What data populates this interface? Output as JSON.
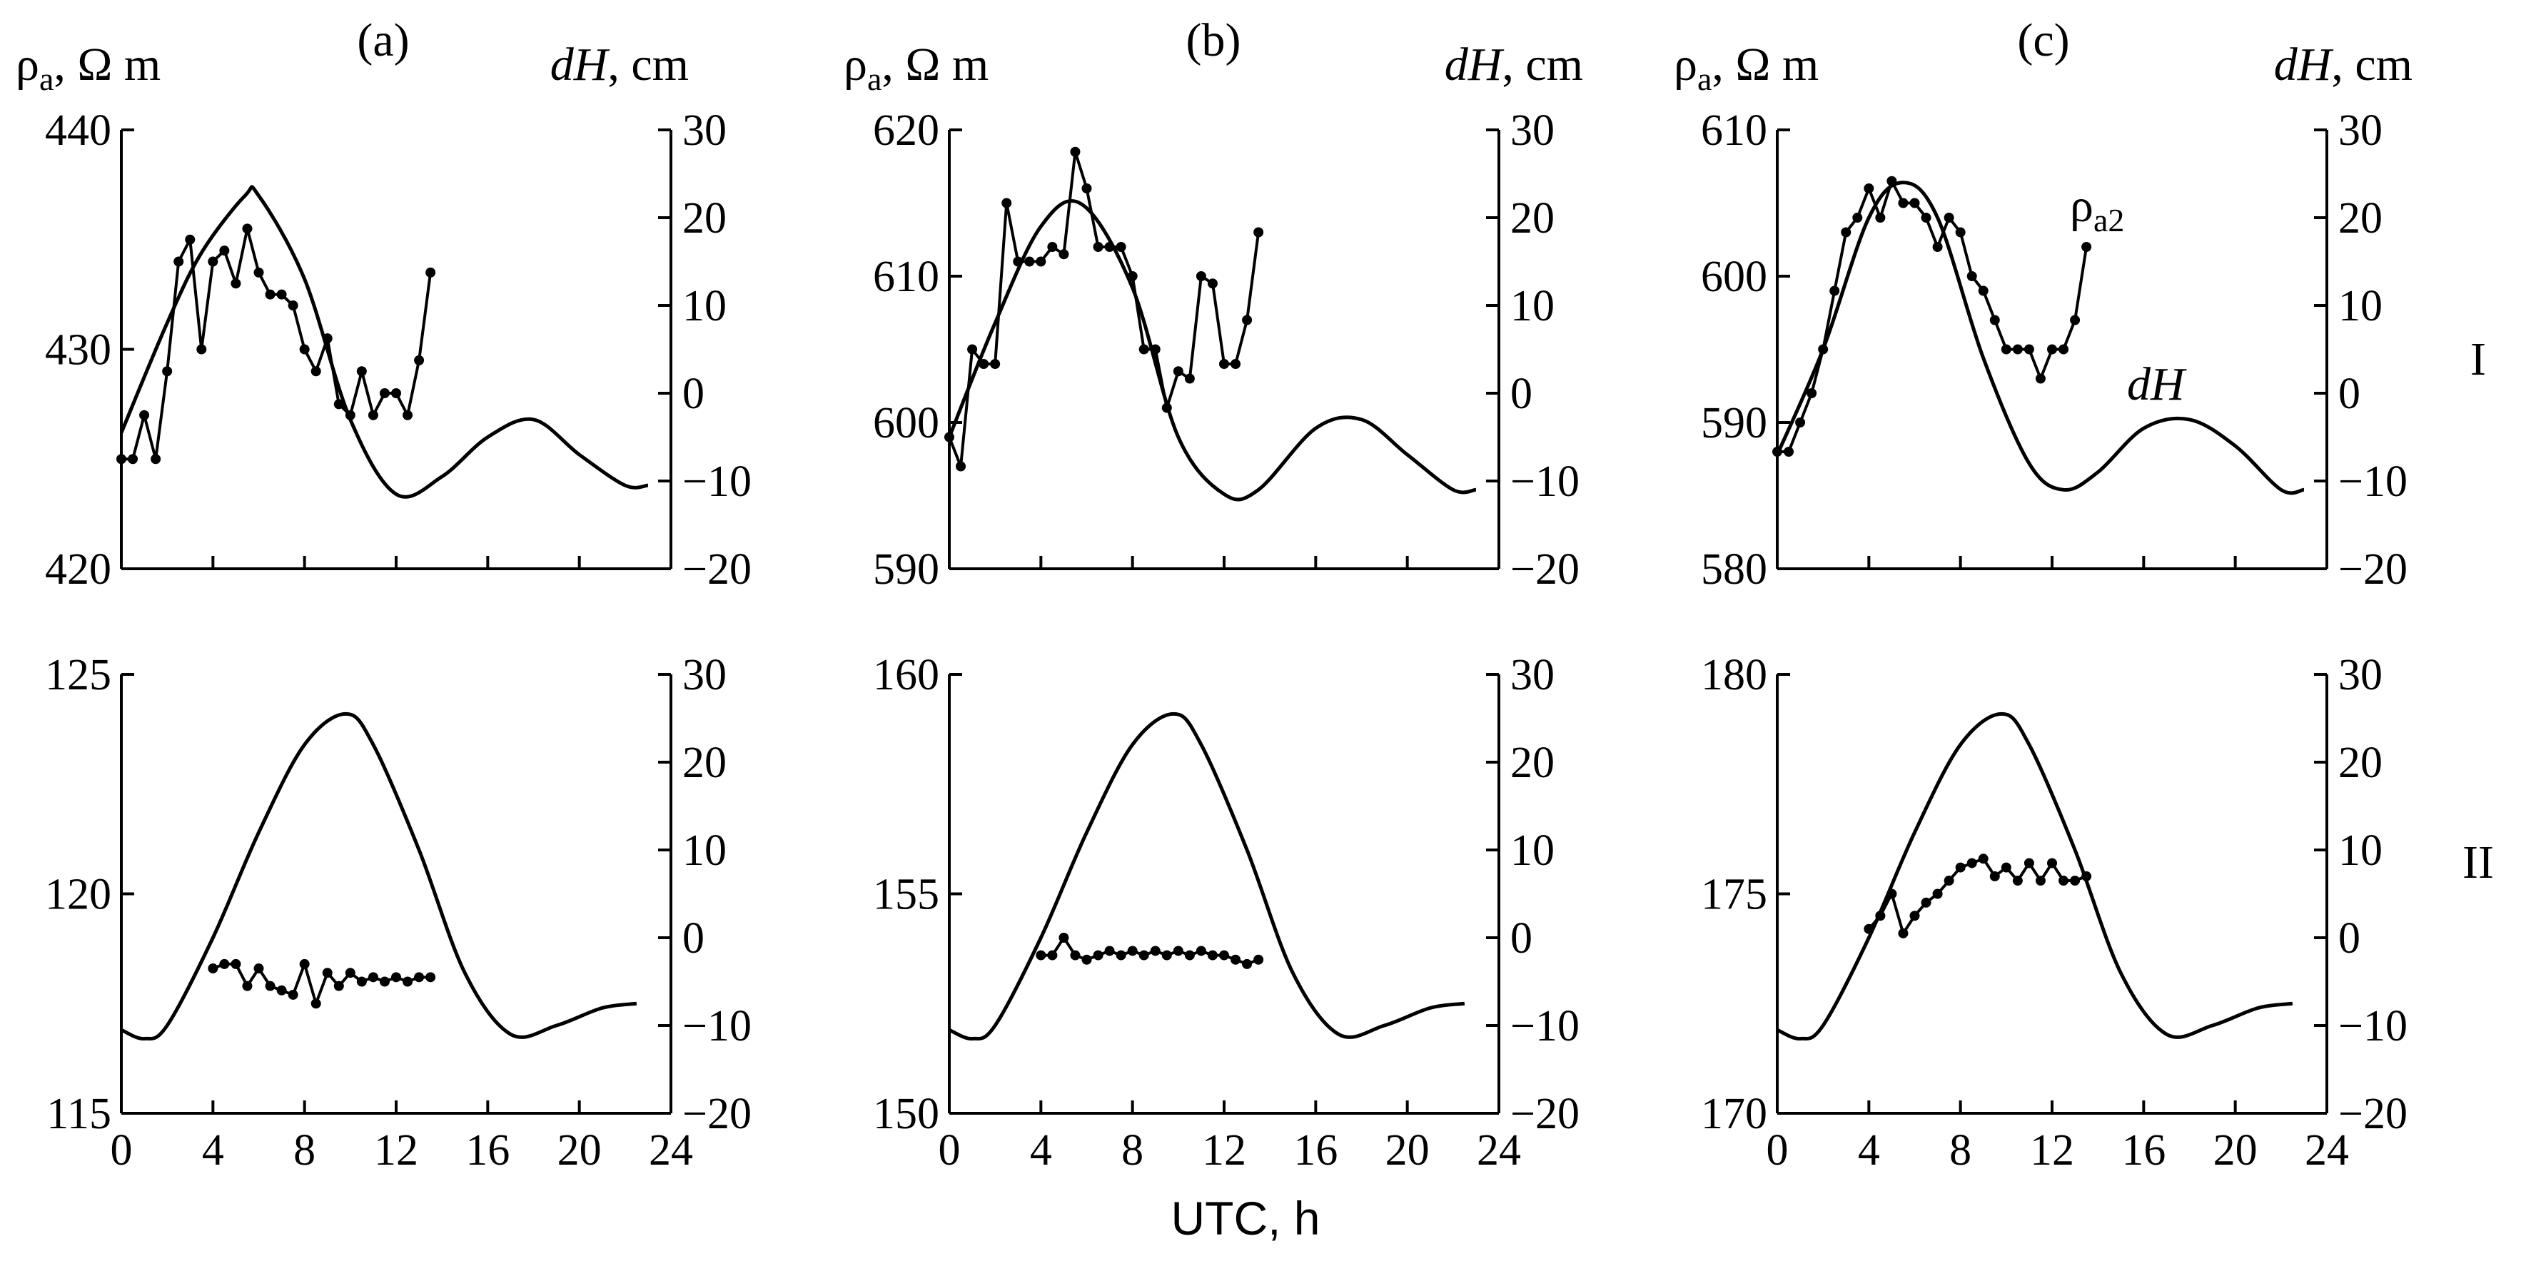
{
  "figure": {
    "panel_letters": [
      "(a)",
      "(b)",
      "(c)"
    ],
    "row_labels": [
      "I",
      "II"
    ],
    "x_axis_label": "UTC, h",
    "rho_symbol": "ρ",
    "rho_subscript": "a",
    "rho_unit": ", Ω m",
    "dh_symbol": "dH",
    "dh_unit": ", cm",
    "rho2_symbol": "ρ",
    "rho2_subscript": "a2",
    "dh_curve_label": "dH"
  },
  "chart_data": [
    {
      "type": "line",
      "panel": "(a)",
      "row": "I",
      "xlabel": "UTC, h",
      "ylabel": "ρa, Ω m",
      "y2label": "dH, cm",
      "xlim": [
        0,
        24
      ],
      "xticks": [
        0,
        4,
        8,
        12,
        16,
        20,
        24
      ],
      "ylim": [
        420,
        440
      ],
      "yticks": [
        420,
        430,
        440
      ],
      "y2lim": [
        -20,
        30
      ],
      "y2ticks": [
        -20,
        -10,
        0,
        10,
        20,
        30
      ],
      "series": [
        {
          "name": "dH",
          "axis": "right",
          "x": [
            0,
            2,
            3.5,
            5.4,
            6,
            8,
            10,
            12,
            14,
            16,
            18,
            20,
            22,
            23
          ],
          "y": [
            -4.5,
            8,
            16,
            22.5,
            22.5,
            13,
            -3,
            -11.5,
            -9.5,
            -5,
            -3,
            -7,
            -10.5,
            -10.5
          ]
        },
        {
          "name": "ρa",
          "axis": "left",
          "x": [
            0,
            0.5,
            1,
            1.5,
            2,
            2.5,
            3,
            3.5,
            4,
            4.5,
            5,
            5.5,
            6,
            6.5,
            7,
            7.5,
            8,
            8.5,
            9,
            9.5,
            10,
            10.5,
            11,
            11.5,
            12,
            12.5,
            13,
            13.5
          ],
          "y": [
            425,
            425,
            427,
            425,
            429,
            434,
            435,
            430,
            434,
            434.5,
            433,
            435.5,
            433.5,
            432.5,
            432.5,
            432,
            430,
            429,
            430.5,
            427.5,
            427,
            429,
            427,
            428,
            428,
            427,
            429.5,
            433.5
          ]
        }
      ]
    },
    {
      "type": "line",
      "panel": "(b)",
      "row": "I",
      "xlabel": "UTC, h",
      "ylabel": "ρa, Ω m",
      "y2label": "dH, cm",
      "xlim": [
        0,
        24
      ],
      "xticks": [
        0,
        4,
        8,
        12,
        16,
        20,
        24
      ],
      "ylim": [
        590,
        620
      ],
      "yticks": [
        590,
        600,
        610,
        620
      ],
      "y2lim": [
        -20,
        30
      ],
      "y2ticks": [
        -20,
        -10,
        0,
        10,
        20,
        30
      ],
      "series": [
        {
          "name": "dH",
          "axis": "right",
          "x": [
            0,
            2,
            4,
            5.8,
            8,
            10,
            12,
            13.5,
            16,
            18,
            20,
            22,
            23
          ],
          "y": [
            -5,
            8,
            19,
            21.5,
            12,
            -5,
            -11.5,
            -11,
            -4,
            -3,
            -7,
            -11,
            -11
          ]
        },
        {
          "name": "ρa",
          "axis": "left",
          "x": [
            0,
            0.5,
            1,
            1.5,
            2,
            2.5,
            3,
            3.5,
            4,
            4.5,
            5,
            5.5,
            6,
            6.5,
            7,
            7.5,
            8,
            8.5,
            9,
            9.5,
            10,
            10.5,
            11,
            11.5,
            12,
            12.5,
            13,
            13.5
          ],
          "y": [
            599,
            597,
            605,
            604,
            604,
            615,
            611,
            611,
            611,
            612,
            611.5,
            618.5,
            616,
            612,
            612,
            612,
            610,
            605,
            605,
            601,
            603.5,
            603,
            610,
            609.5,
            604,
            604,
            607,
            613
          ]
        }
      ]
    },
    {
      "type": "line",
      "panel": "(c)",
      "row": "I",
      "xlabel": "UTC, h",
      "ylabel": "ρa, Ω m",
      "y2label": "dH, cm",
      "xlim": [
        0,
        24
      ],
      "xticks": [
        0,
        4,
        8,
        12,
        16,
        20,
        24
      ],
      "ylim": [
        580,
        610
      ],
      "yticks": [
        580,
        590,
        600,
        610
      ],
      "y2lim": [
        -20,
        30
      ],
      "y2ticks": [
        -20,
        -10,
        0,
        10,
        20,
        30
      ],
      "series": [
        {
          "name": "dH",
          "axis": "right",
          "x": [
            0,
            2,
            4,
            5.5,
            7,
            9,
            11,
            12.5,
            14,
            16,
            18,
            20,
            22,
            23
          ],
          "y": [
            -7,
            5,
            20,
            24,
            20,
            4,
            -8,
            -11,
            -9,
            -4,
            -3,
            -6,
            -11,
            -11
          ]
        },
        {
          "name": "ρa2",
          "axis": "left",
          "x": [
            0,
            0.5,
            1,
            1.5,
            2,
            2.5,
            3,
            3.5,
            4,
            4.5,
            5,
            5.5,
            6,
            6.5,
            7,
            7.5,
            8,
            8.5,
            9,
            9.5,
            10,
            10.5,
            11,
            11.5,
            12,
            12.5,
            13,
            13.5
          ],
          "y": [
            588,
            588,
            590,
            592,
            595,
            599,
            603,
            604,
            606,
            604,
            606.5,
            605,
            605,
            604,
            602,
            604,
            603,
            600,
            599,
            597,
            595,
            595,
            595,
            593,
            595,
            595,
            597,
            602
          ]
        }
      ]
    },
    {
      "type": "line",
      "panel": "(a)",
      "row": "II",
      "xlabel": "UTC, h",
      "ylabel": "ρa, Ω m",
      "y2label": "dH, cm",
      "xlim": [
        0,
        24
      ],
      "xticks": [
        0,
        4,
        8,
        12,
        16,
        20,
        24
      ],
      "ylim": [
        115,
        125
      ],
      "yticks": [
        115,
        120,
        125
      ],
      "y2lim": [
        -20,
        30
      ],
      "y2ticks": [
        -20,
        -10,
        0,
        10,
        20,
        30
      ],
      "series": [
        {
          "name": "dH",
          "axis": "right",
          "x": [
            0,
            1,
            2,
            4,
            6,
            8,
            9.8,
            11,
            13,
            15,
            17,
            19,
            21,
            22.5
          ],
          "y": [
            -10.5,
            -11.5,
            -10,
            0,
            12,
            22,
            25.5,
            22,
            10,
            -4,
            -11,
            -10,
            -8,
            -7.5
          ]
        },
        {
          "name": "ρa",
          "axis": "left",
          "x": [
            4,
            4.5,
            5,
            5.5,
            6,
            6.5,
            7,
            7.5,
            8,
            8.5,
            9,
            9.5,
            10,
            10.5,
            11,
            11.5,
            12,
            12.5,
            13,
            13.5
          ],
          "y": [
            118.3,
            118.4,
            118.4,
            117.9,
            118.3,
            117.9,
            117.8,
            117.7,
            118.4,
            117.5,
            118.2,
            117.9,
            118.2,
            118.0,
            118.1,
            118.0,
            118.1,
            118.0,
            118.1,
            118.1
          ]
        }
      ]
    },
    {
      "type": "line",
      "panel": "(b)",
      "row": "II",
      "xlabel": "UTC, h",
      "ylabel": "ρa, Ω m",
      "y2label": "dH, cm",
      "xlim": [
        0,
        24
      ],
      "xticks": [
        0,
        4,
        8,
        12,
        16,
        20,
        24
      ],
      "ylim": [
        150,
        160
      ],
      "yticks": [
        150,
        155,
        160
      ],
      "y2lim": [
        -20,
        30
      ],
      "y2ticks": [
        -20,
        -10,
        0,
        10,
        20,
        30
      ],
      "series": [
        {
          "name": "dH",
          "axis": "right",
          "x": [
            0,
            1,
            2,
            4,
            6,
            8,
            9.8,
            11,
            13,
            15,
            17,
            19,
            21,
            22.5
          ],
          "y": [
            -10.5,
            -11.5,
            -10,
            0,
            12,
            22,
            25.5,
            22,
            10,
            -4,
            -11,
            -10,
            -8,
            -7.5
          ]
        },
        {
          "name": "ρa",
          "axis": "left",
          "x": [
            4,
            4.5,
            5,
            5.5,
            6,
            6.5,
            7,
            7.5,
            8,
            8.5,
            9,
            9.5,
            10,
            10.5,
            11,
            11.5,
            12,
            12.5,
            13,
            13.5
          ],
          "y": [
            153.6,
            153.6,
            154.0,
            153.6,
            153.5,
            153.6,
            153.7,
            153.6,
            153.7,
            153.6,
            153.7,
            153.6,
            153.7,
            153.6,
            153.7,
            153.6,
            153.6,
            153.5,
            153.4,
            153.5
          ]
        }
      ]
    },
    {
      "type": "line",
      "panel": "(c)",
      "row": "II",
      "xlabel": "UTC, h",
      "ylabel": "ρa, Ω m",
      "y2label": "dH, cm",
      "xlim": [
        0,
        24
      ],
      "xticks": [
        0,
        4,
        8,
        12,
        16,
        20,
        24
      ],
      "ylim": [
        170,
        180
      ],
      "yticks": [
        170,
        175,
        180
      ],
      "y2lim": [
        -20,
        30
      ],
      "y2ticks": [
        -20,
        -10,
        0,
        10,
        20,
        30
      ],
      "series": [
        {
          "name": "dH",
          "axis": "right",
          "x": [
            0,
            1,
            2,
            4,
            6,
            8,
            9.8,
            11,
            13,
            15,
            17,
            19,
            21,
            22.5
          ],
          "y": [
            -10.5,
            -11.5,
            -10,
            0,
            12,
            22,
            25.5,
            22,
            10,
            -4,
            -11,
            -10,
            -8,
            -7.5
          ]
        },
        {
          "name": "ρa",
          "axis": "left",
          "x": [
            4,
            4.5,
            5,
            5.5,
            6,
            6.5,
            7,
            7.5,
            8,
            8.5,
            9,
            9.5,
            10,
            10.5,
            11,
            11.5,
            12,
            12.5,
            13,
            13.5
          ],
          "y": [
            174.2,
            174.5,
            175.0,
            174.1,
            174.5,
            174.8,
            175.0,
            175.3,
            175.6,
            175.7,
            175.8,
            175.4,
            175.6,
            175.3,
            175.7,
            175.3,
            175.7,
            175.3,
            175.3,
            175.4
          ]
        }
      ]
    }
  ]
}
